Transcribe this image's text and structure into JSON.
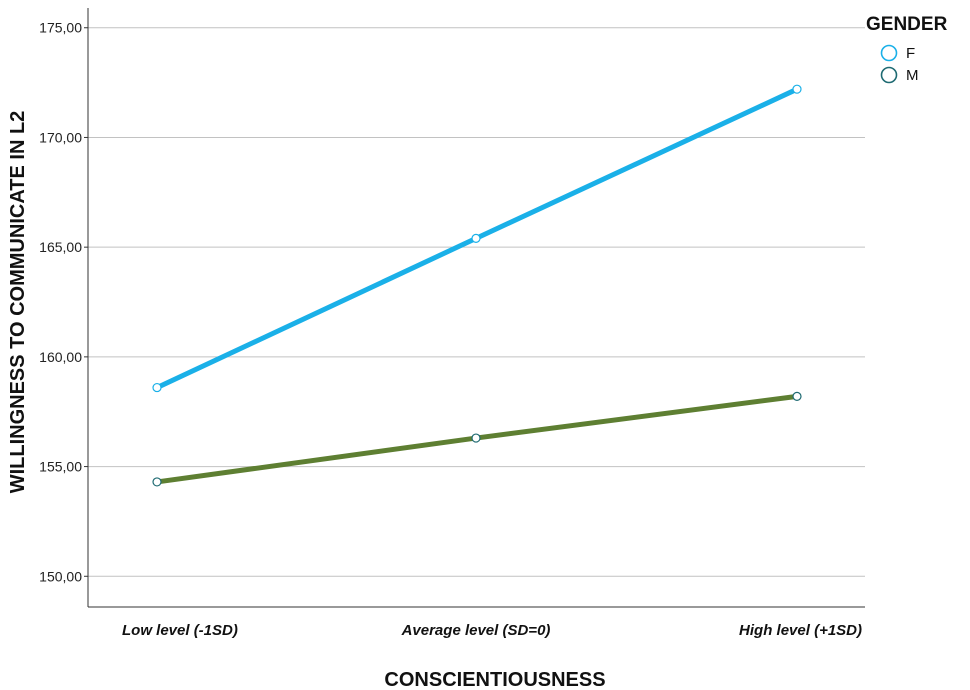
{
  "chart_data": {
    "type": "line",
    "xlabel": "CONSCIENTIOUSNESS",
    "ylabel": "WILLINGNESS TO COMMUNICATE IN L2",
    "categories": [
      "Low level (-1SD)",
      "Average level (SD=0)",
      "High level (+1SD)"
    ],
    "ylim": [
      148.6,
      175.9
    ],
    "yticks": [
      150,
      155,
      160,
      165,
      170,
      175
    ],
    "ytick_labels": [
      "150,00",
      "155,00",
      "160,00",
      "165,00",
      "170,00",
      "175,00"
    ],
    "grid": "horizontal",
    "legend": {
      "title": "GENDER",
      "placement": "top-right"
    },
    "series": [
      {
        "name": "F",
        "values": [
          158.6,
          165.4,
          172.2
        ],
        "color": "#1AB0E8",
        "marker_color": "#1AB0E8"
      },
      {
        "name": "M",
        "values": [
          154.3,
          156.3,
          158.2
        ],
        "color": "#5E7F32",
        "marker_color": "#1E6A72"
      }
    ]
  }
}
